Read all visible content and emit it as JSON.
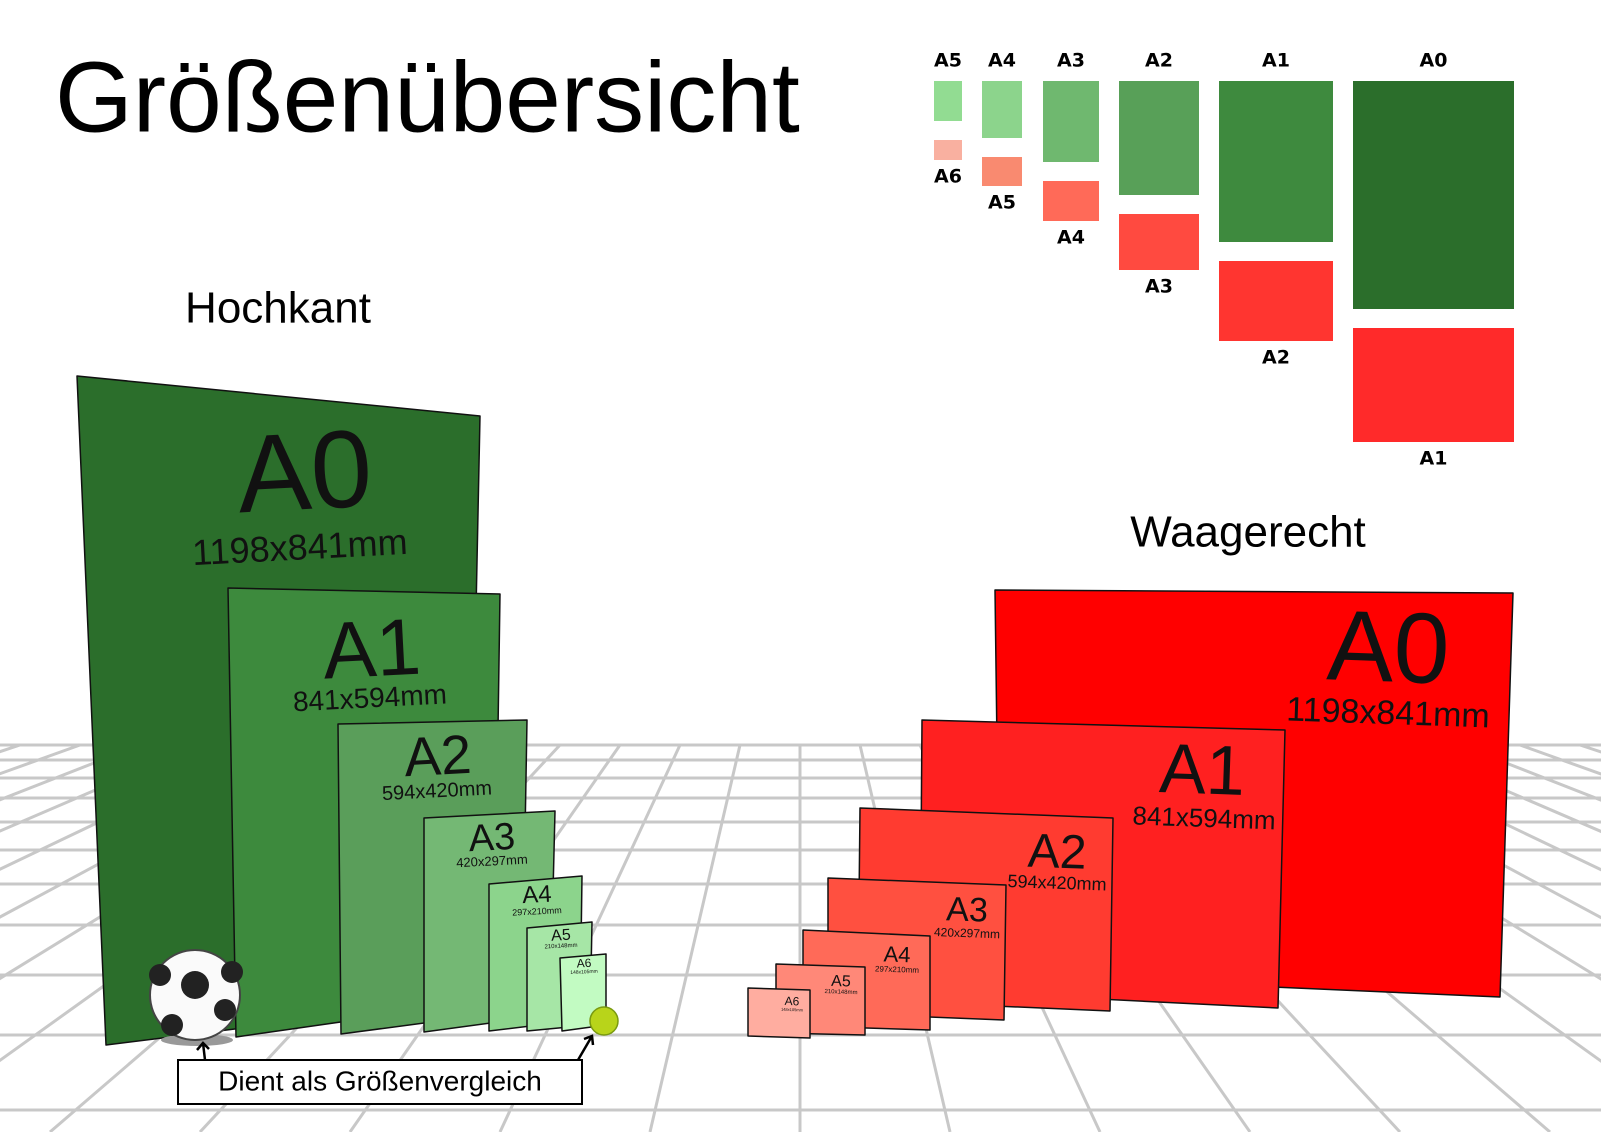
{
  "title": "Größenübersicht",
  "overview": {
    "columns": [
      {
        "top": "A5",
        "bottom": "A6"
      },
      {
        "top": "A4",
        "bottom": "A5"
      },
      {
        "top": "A3",
        "bottom": "A4"
      },
      {
        "top": "A2",
        "bottom": "A3"
      },
      {
        "top": "A1",
        "bottom": "A2"
      },
      {
        "top": "A0",
        "bottom": "A1"
      }
    ]
  },
  "portrait": {
    "heading": "Hochkant",
    "sheets": [
      {
        "name": "A0",
        "size": "1198x841mm"
      },
      {
        "name": "A1",
        "size": "841x594mm"
      },
      {
        "name": "A2",
        "size": "594x420mm"
      },
      {
        "name": "A3",
        "size": "420x297mm"
      },
      {
        "name": "A4",
        "size": "297x210mm"
      },
      {
        "name": "A5",
        "size": "210x148mm"
      },
      {
        "name": "A6",
        "size": "148x105mm"
      }
    ]
  },
  "landscape": {
    "heading": "Waagerecht",
    "sheets": [
      {
        "name": "A0",
        "size": "1198x841mm"
      },
      {
        "name": "A1",
        "size": "841x594mm"
      },
      {
        "name": "A2",
        "size": "594x420mm"
      },
      {
        "name": "A3",
        "size": "420x297mm"
      },
      {
        "name": "A4",
        "size": "297x210mm"
      },
      {
        "name": "A5",
        "size": "210x148mm"
      },
      {
        "name": "A6",
        "size": "148x105mm"
      }
    ]
  },
  "comparison_note": "Dient als Größenvergleich"
}
